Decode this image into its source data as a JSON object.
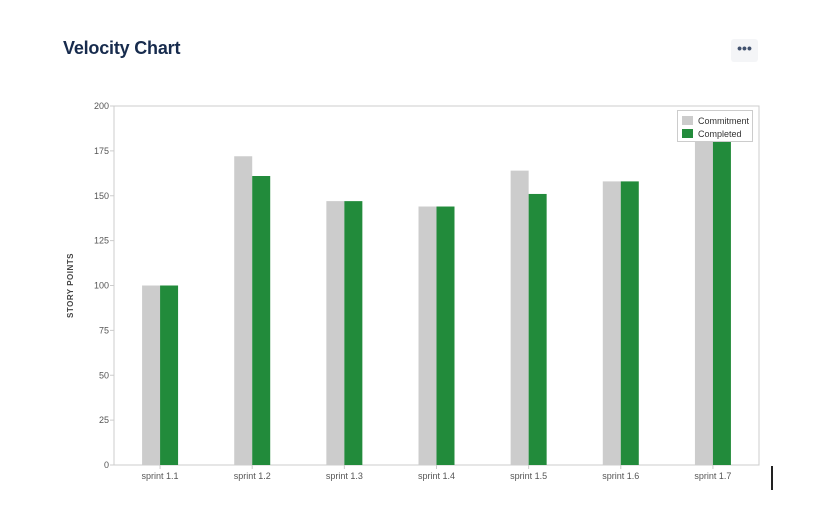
{
  "header": {
    "title": "Velocity Chart",
    "more_label": "•••"
  },
  "chart_data": {
    "type": "bar",
    "title": "",
    "xlabel": "",
    "ylabel": "STORY POINTS",
    "ylim": [
      0,
      200
    ],
    "yticks": [
      0,
      25,
      50,
      75,
      100,
      125,
      150,
      175,
      200
    ],
    "categories": [
      "sprint 1.1",
      "sprint 1.2",
      "sprint 1.3",
      "sprint 1.4",
      "sprint 1.5",
      "sprint 1.6",
      "sprint 1.7"
    ],
    "series": [
      {
        "name": "Commitment",
        "color": "#cccccc",
        "values": [
          100,
          172,
          147,
          144,
          164,
          158,
          183
        ]
      },
      {
        "name": "Completed",
        "color": "#228b3b",
        "values": [
          100,
          161,
          147,
          144,
          151,
          158,
          183
        ]
      }
    ],
    "legend": "top-right",
    "grid": false
  }
}
